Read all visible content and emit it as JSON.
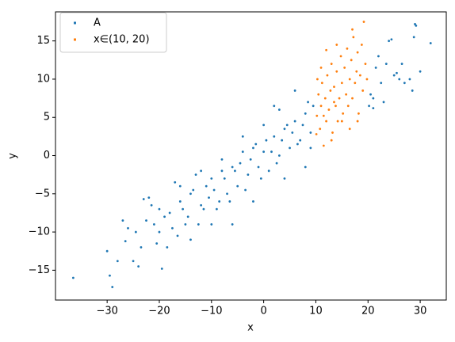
{
  "chart_data": {
    "type": "scatter",
    "xlabel": "x",
    "ylabel": "y",
    "xlim": [
      -39.9,
      35.0
    ],
    "ylim": [
      -18.9,
      18.8
    ],
    "xticks": [
      {
        "value": -30,
        "label": "−30"
      },
      {
        "value": -20,
        "label": "−20"
      },
      {
        "value": -10,
        "label": "−10"
      },
      0,
      10,
      20,
      30
    ],
    "yticks": [
      {
        "value": -15,
        "label": "−15"
      },
      {
        "value": -10,
        "label": "−10"
      },
      {
        "value": -5,
        "label": "−5"
      },
      0,
      5,
      10,
      15
    ],
    "legend": "upper left",
    "series": [
      {
        "name": "A",
        "color": "#1f77b4",
        "x": [
          -36.5,
          -30,
          -29.5,
          -29,
          -27,
          -26.5,
          -25,
          -24,
          -23,
          -22,
          -21,
          -20.5,
          -19.5,
          -18,
          -17,
          -16,
          -15,
          -14,
          -13,
          -12,
          -11,
          -10,
          -9,
          -8,
          -7,
          -6,
          -5,
          -4,
          -3,
          -2,
          -1,
          0,
          1,
          2,
          3,
          4,
          5,
          6,
          7,
          8,
          9,
          9.5,
          -28,
          -26,
          -24.5,
          -23.5,
          -22.5,
          -21.5,
          -20,
          -19,
          -18.5,
          -17.5,
          -16.5,
          -15.5,
          -14.5,
          -13.5,
          -12.5,
          -11.5,
          -10.5,
          -9.5,
          -8.5,
          -7.5,
          -6.5,
          -5.5,
          -4.5,
          -3.5,
          -2.5,
          -1.5,
          -0.5,
          0.5,
          1.5,
          2.5,
          3.5,
          4.5,
          5.5,
          6.5,
          7.5,
          8.5,
          9,
          2,
          0,
          -4,
          -8,
          -12,
          -16,
          -20,
          -2,
          4,
          8,
          -6,
          -10,
          -14,
          6,
          3,
          20.5,
          21,
          21.5,
          22,
          22.5,
          23,
          23.5,
          24,
          24.5,
          25,
          25.5,
          26,
          26.5,
          27,
          28,
          28.5,
          29,
          29.2,
          28.8,
          32,
          30,
          20.2,
          21
        ],
        "y": [
          -16,
          -12.5,
          -15.7,
          -17.2,
          -8.5,
          -11.2,
          -13.8,
          -14.5,
          -5.7,
          -5.5,
          -9,
          -11.5,
          -14.8,
          -7.5,
          -3.5,
          -6,
          -9,
          -5,
          -2.5,
          -6.5,
          -4,
          -3,
          -7,
          -2,
          -5,
          -1.5,
          -4,
          0.5,
          -2.5,
          1,
          -1.5,
          0.5,
          -2,
          2.5,
          0,
          3.5,
          1,
          4.5,
          2,
          5.5,
          3,
          6.5,
          -13.8,
          -9.5,
          -10,
          -12,
          -8.5,
          -6.5,
          -10,
          -8,
          -12,
          -9.5,
          -10.5,
          -7,
          -8,
          -4.5,
          -9,
          -7,
          -5.5,
          -4.5,
          -6,
          -3,
          -6,
          -2,
          -1,
          -4.5,
          -0.5,
          1.5,
          -3,
          2,
          0.5,
          -1,
          2,
          4,
          3,
          1.5,
          4,
          7,
          1,
          6.5,
          4,
          2.5,
          -0.5,
          -2,
          -4,
          -7,
          -6,
          -3,
          -1.5,
          -9,
          -9,
          -11,
          8.5,
          6,
          8,
          6.2,
          11.5,
          13,
          9.5,
          7,
          12,
          15,
          15.2,
          10.5,
          10.8,
          10,
          12,
          9.5,
          10,
          8.5,
          17.2,
          17,
          15.5,
          14.7,
          11,
          6.5,
          7.5
        ]
      },
      {
        "name": "x∈(10, 20)",
        "color": "#ff7f0e",
        "x": [
          10.2,
          10.5,
          10.8,
          11,
          11.2,
          11.5,
          11.8,
          12,
          12.2,
          12.5,
          12.8,
          13,
          13.2,
          13.5,
          13.8,
          14,
          14.2,
          14.5,
          14.8,
          15,
          15.2,
          15.5,
          15.8,
          16,
          16.2,
          16.5,
          16.8,
          17,
          17.2,
          17.5,
          17.8,
          18,
          18.2,
          18.5,
          18.8,
          19,
          19.2,
          19.5,
          19.8,
          10.3,
          11,
          12,
          13,
          15,
          16.5,
          18,
          17,
          14,
          11.5,
          13.5,
          10.1
        ],
        "y": [
          5.2,
          8,
          3.5,
          6.5,
          9.5,
          1.3,
          7.5,
          4.5,
          10.5,
          6,
          8.5,
          12,
          3,
          9,
          6.5,
          11,
          4.5,
          7.5,
          13,
          9.5,
          5.5,
          11.5,
          8,
          14,
          6.5,
          10,
          12.5,
          7.5,
          15.5,
          9.5,
          11,
          13.5,
          5.5,
          10.5,
          14.5,
          8.5,
          17.5,
          12,
          10,
          10,
          11.5,
          13.8,
          2,
          4.5,
          3.5,
          4.5,
          16.5,
          14.5,
          5.2,
          7,
          2.8
        ]
      }
    ]
  }
}
